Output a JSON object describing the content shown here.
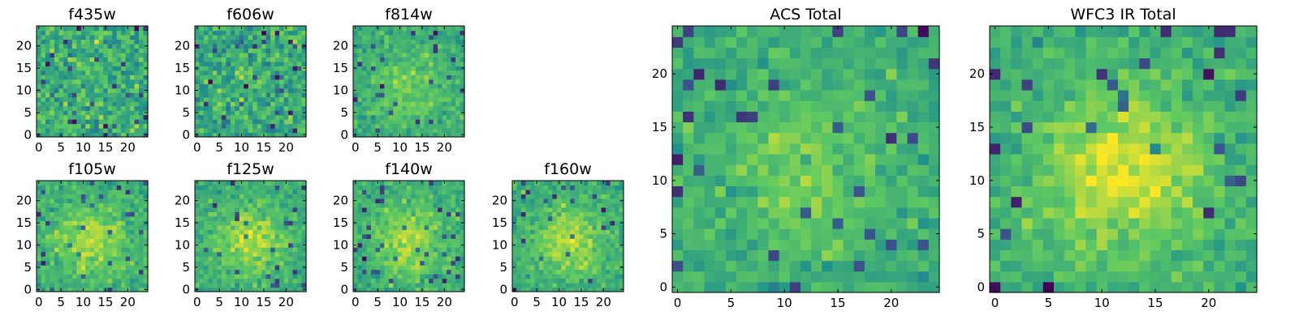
{
  "chart_data": [
    {
      "type": "heatmap",
      "title": "f435w",
      "size": 25,
      "xticks": [
        0,
        5,
        10,
        15,
        20
      ],
      "yticks": [
        0,
        5,
        10,
        15,
        20
      ],
      "pattern": "noise",
      "seed": 11
    },
    {
      "type": "heatmap",
      "title": "f606w",
      "size": 25,
      "xticks": [
        0,
        5,
        10,
        15,
        20
      ],
      "yticks": [
        0,
        5,
        10,
        15,
        20
      ],
      "pattern": "noise",
      "seed": 23
    },
    {
      "type": "heatmap",
      "title": "f814w",
      "size": 25,
      "xticks": [
        0,
        5,
        10,
        15,
        20
      ],
      "yticks": [
        0,
        5,
        10,
        15,
        20
      ],
      "pattern": "faint-source",
      "seed": 37
    },
    {
      "type": "heatmap",
      "title": "f105w",
      "size": 25,
      "xticks": [
        0,
        5,
        10,
        15,
        20
      ],
      "yticks": [
        0,
        5,
        10,
        15,
        20
      ],
      "pattern": "source",
      "seed": 41
    },
    {
      "type": "heatmap",
      "title": "f125w",
      "size": 25,
      "xticks": [
        0,
        5,
        10,
        15,
        20
      ],
      "yticks": [
        0,
        5,
        10,
        15,
        20
      ],
      "pattern": "source",
      "seed": 53
    },
    {
      "type": "heatmap",
      "title": "f140w",
      "size": 25,
      "xticks": [
        0,
        5,
        10,
        15,
        20
      ],
      "yticks": [
        0,
        5,
        10,
        15,
        20
      ],
      "pattern": "source",
      "seed": 67
    },
    {
      "type": "heatmap",
      "title": "f160w",
      "size": 25,
      "xticks": [
        0,
        5,
        10,
        15,
        20
      ],
      "yticks": [
        0,
        5,
        10,
        15,
        20
      ],
      "pattern": "source",
      "seed": 79
    },
    {
      "type": "heatmap",
      "title": "ACS Total",
      "size": 25,
      "xticks": [
        0,
        5,
        10,
        15,
        20
      ],
      "yticks": [
        0,
        5,
        10,
        15,
        20
      ],
      "pattern": "faint-source",
      "seed": 83
    },
    {
      "type": "heatmap",
      "title": "WFC3 IR Total",
      "size": 25,
      "xticks": [
        0,
        5,
        10,
        15,
        20
      ],
      "yticks": [
        0,
        5,
        10,
        15,
        20
      ],
      "pattern": "strong-source",
      "seed": 97
    }
  ],
  "colormap": [
    "#440154",
    "#3b528b",
    "#21918c",
    "#5ec962",
    "#fde725"
  ]
}
